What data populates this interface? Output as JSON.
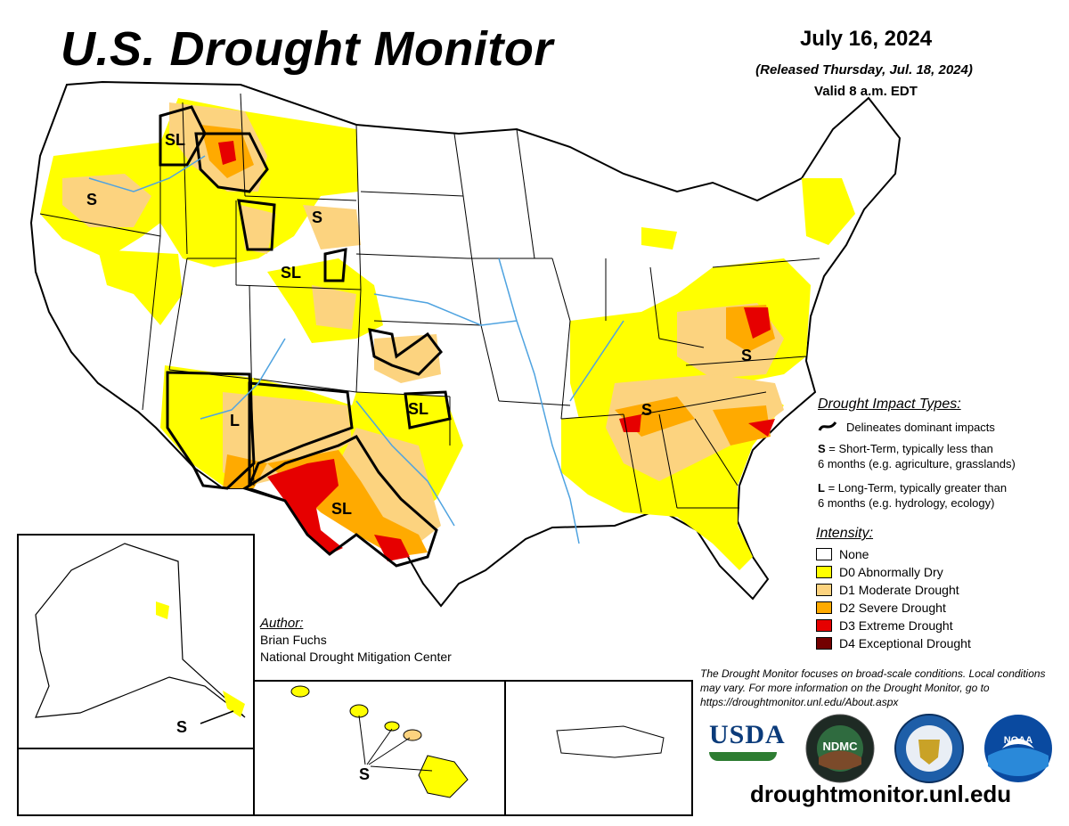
{
  "header": {
    "title": "U.S. Drought Monitor",
    "date": "July 16, 2024",
    "released": "(Released Thursday, Jul. 18, 2024)",
    "valid": "Valid 8 a.m. EDT"
  },
  "colors": {
    "none": "#ffffff",
    "d0": "#ffff00",
    "d1": "#fcd37f",
    "d2": "#ffaa00",
    "d3": "#e60000",
    "d4": "#730000",
    "water": "#4fa3e0"
  },
  "impact_types": {
    "heading": "Drought Impact Types:",
    "delineates": "Delineates dominant impacts",
    "short_term_key": "S",
    "short_term_text": " = Short-Term, typically less than",
    "short_term_text2": "6 months (e.g. agriculture, grasslands)",
    "long_term_key": "L",
    "long_term_text": " = Long-Term, typically greater than",
    "long_term_text2": "6 months (e.g. hydrology, ecology)"
  },
  "intensity": {
    "heading": "Intensity:",
    "items": [
      {
        "label": "None",
        "color": "#ffffff"
      },
      {
        "label": "D0 Abnormally Dry",
        "color": "#ffff00"
      },
      {
        "label": "D1 Moderate Drought",
        "color": "#fcd37f"
      },
      {
        "label": "D2 Severe Drought",
        "color": "#ffaa00"
      },
      {
        "label": "D3 Extreme Drought",
        "color": "#e60000"
      },
      {
        "label": "D4 Exceptional Drought",
        "color": "#730000"
      }
    ]
  },
  "author": {
    "heading": "Author:",
    "name": "Brian Fuchs",
    "org": "National Drought Mitigation Center"
  },
  "note": "The Drought Monitor focuses on broad-scale conditions. Local conditions may vary. For more information on the Drought Monitor, go to https://droughtmonitor.unl.edu/About.aspx",
  "website": "droughtmonitor.unl.edu",
  "map_labels": {
    "pnw": "S",
    "idaho_mt": "SL",
    "wyoming": "S",
    "wy_south": "SL",
    "arizona": "L",
    "nm_tx": "SL",
    "texas": "SL",
    "tennessee": "S",
    "virginia": "S",
    "alaska": "S",
    "hawaii": "S"
  },
  "logos": {
    "usda": "USDA",
    "ndmc": "NDMC",
    "noaa": "NOAA"
  }
}
